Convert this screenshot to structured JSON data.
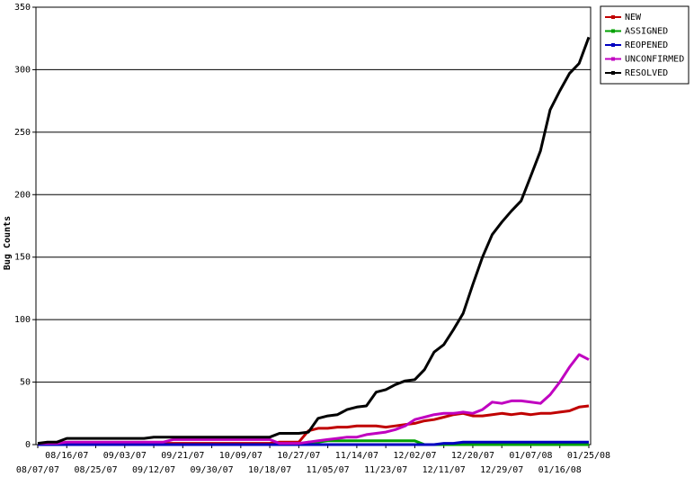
{
  "chart_data": {
    "type": "line",
    "y_label": "Bug Counts",
    "categories": [
      "08/07/07",
      null,
      null,
      "08/16/07",
      null,
      null,
      "08/25/07",
      null,
      null,
      "09/03/07",
      null,
      null,
      "09/12/07",
      null,
      null,
      "09/21/07",
      null,
      null,
      "09/30/07",
      null,
      null,
      "10/09/07",
      null,
      null,
      "10/18/07",
      null,
      null,
      "10/27/07",
      null,
      null,
      "11/05/07",
      null,
      null,
      "11/14/07",
      null,
      null,
      "11/23/07",
      null,
      null,
      "12/02/07",
      null,
      null,
      "12/11/07",
      null,
      null,
      "12/20/07",
      null,
      null,
      "12/29/07",
      null,
      null,
      "01/07/08",
      null,
      null,
      "01/16/08",
      null,
      null,
      "01/25/08"
    ],
    "series": [
      {
        "name": "NEW",
        "color": "#c00000",
        "values": [
          1,
          1,
          1,
          1,
          1,
          1,
          1,
          1,
          1,
          1,
          1,
          1,
          1,
          1,
          1,
          1,
          1,
          1,
          1,
          1,
          1,
          1,
          1,
          1,
          1,
          2,
          2,
          2,
          11,
          13,
          13,
          14,
          14,
          15,
          15,
          15,
          14,
          15,
          16,
          17,
          19,
          20,
          22,
          24,
          25,
          23,
          23,
          24,
          25,
          24,
          25,
          24,
          25,
          25,
          26,
          27,
          30,
          31
        ]
      },
      {
        "name": "ASSIGNED",
        "color": "#00a000",
        "values": [
          0,
          0,
          0,
          0,
          0,
          0,
          0,
          0,
          0,
          0,
          0,
          0,
          0,
          0,
          0,
          0,
          0,
          0,
          0,
          0,
          0,
          0,
          0,
          0,
          0,
          0,
          0,
          0,
          2,
          2,
          3,
          3,
          3,
          3,
          3,
          3,
          3,
          3,
          3,
          3,
          0,
          0,
          0,
          0,
          0,
          0,
          0,
          0,
          0,
          0,
          0,
          0,
          0,
          0,
          0,
          0,
          0,
          0
        ]
      },
      {
        "name": "REOPENED",
        "color": "#0000c0",
        "values": [
          0,
          0,
          0,
          0,
          0,
          0,
          0,
          0,
          0,
          0,
          0,
          0,
          0,
          0,
          0,
          0,
          0,
          0,
          0,
          0,
          0,
          0,
          0,
          0,
          0,
          0,
          0,
          0,
          0,
          0,
          0,
          0,
          0,
          0,
          0,
          0,
          0,
          0,
          0,
          0,
          0,
          0,
          1,
          1,
          2,
          2,
          2,
          2,
          2,
          2,
          2,
          2,
          2,
          2,
          2,
          2,
          2,
          2
        ]
      },
      {
        "name": "UNCONFIRMED",
        "color": "#c000c0",
        "values": [
          1,
          1,
          1,
          2,
          2,
          2,
          2,
          2,
          2,
          2,
          2,
          2,
          2,
          2,
          4,
          4,
          4,
          4,
          4,
          4,
          4,
          4,
          4,
          4,
          4,
          1,
          1,
          1,
          2,
          3,
          4,
          5,
          6,
          6,
          8,
          9,
          10,
          12,
          15,
          20,
          22,
          24,
          25,
          25,
          26,
          25,
          28,
          34,
          33,
          35,
          35,
          34,
          33,
          40,
          50,
          62,
          72,
          68
        ]
      },
      {
        "name": "RESOLVED",
        "color": "#000000",
        "values": [
          1,
          2,
          2,
          5,
          5,
          5,
          5,
          5,
          5,
          5,
          5,
          5,
          6,
          6,
          6,
          6,
          6,
          6,
          6,
          6,
          6,
          6,
          6,
          6,
          6,
          9,
          9,
          9,
          10,
          21,
          23,
          24,
          28,
          30,
          31,
          42,
          44,
          48,
          51,
          52,
          60,
          74,
          80,
          92,
          105,
          128,
          150,
          168,
          178,
          187,
          195,
          215,
          235,
          268,
          283,
          297,
          305,
          326
        ]
      }
    ],
    "ylim": [
      0,
      350
    ],
    "yticks": [
      0,
      50,
      100,
      150,
      200,
      250,
      300,
      350
    ],
    "grid": true
  }
}
